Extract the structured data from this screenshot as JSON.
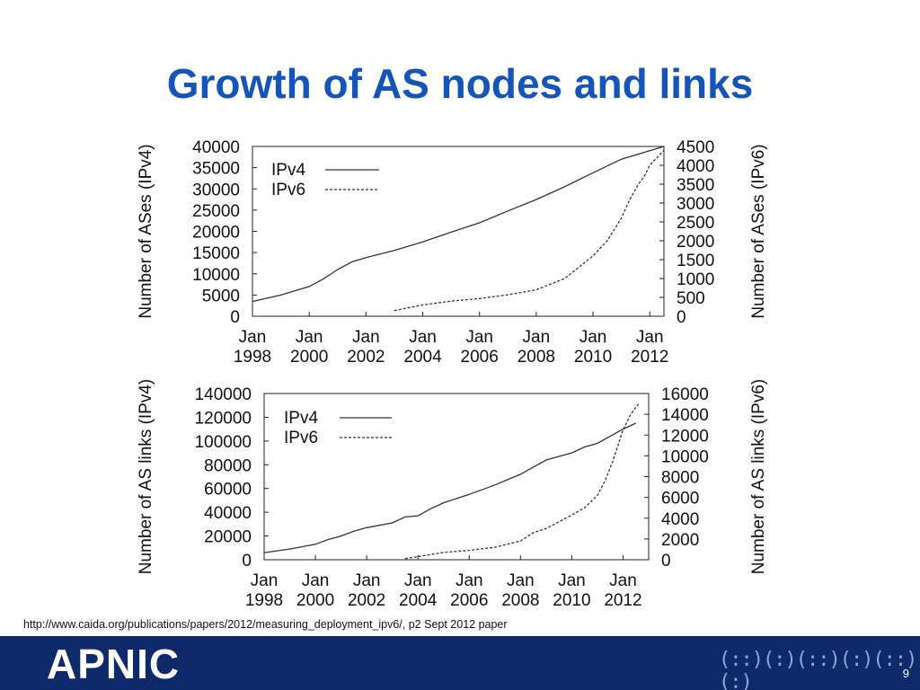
{
  "slide": {
    "title": "Growth of AS nodes and links",
    "source_note": "http://www.caida.org/publications/papers/2012/measuring_deployment_ipv6/, p2 Sept 2012 paper",
    "page_number": "9"
  },
  "footer": {
    "logo_text": "APNIC",
    "colors": {
      "bar": "#0f2a6b",
      "logo": "#ffffff",
      "title": "#1554b8"
    }
  },
  "chart_data": [
    {
      "type": "line",
      "title": "",
      "ylabel": "Number of ASes (IPv4)",
      "y2label": "Number of ASes (IPv6)",
      "x_ticks": [
        {
          "month": "Jan",
          "year": "1998",
          "t": 1998
        },
        {
          "month": "Jan",
          "year": "2000",
          "t": 2000
        },
        {
          "month": "Jan",
          "year": "2002",
          "t": 2002
        },
        {
          "month": "Jan",
          "year": "2004",
          "t": 2004
        },
        {
          "month": "Jan",
          "year": "2006",
          "t": 2006
        },
        {
          "month": "Jan",
          "year": "2008",
          "t": 2008
        },
        {
          "month": "Jan",
          "year": "2010",
          "t": 2010
        },
        {
          "month": "Jan",
          "year": "2012",
          "t": 2012
        }
      ],
      "xlim": [
        1998,
        2012.5
      ],
      "ylim": [
        0,
        40000
      ],
      "y2lim": [
        0,
        4500
      ],
      "y_ticks": [
        "0",
        "5000",
        "10000",
        "15000",
        "20000",
        "25000",
        "30000",
        "35000",
        "40000"
      ],
      "y2_ticks": [
        "0",
        "500",
        "1000",
        "1500",
        "2000",
        "2500",
        "3000",
        "3500",
        "4000",
        "4500"
      ],
      "legend": "top-left",
      "grid": false,
      "series": [
        {
          "name": "IPv4",
          "axis": "left",
          "style": "solid",
          "x": [
            1998,
            1999,
            2000,
            2000.5,
            2001,
            2001.5,
            2002,
            2003,
            2004,
            2005,
            2006,
            2007,
            2008,
            2009,
            2010,
            2011,
            2012.5
          ],
          "y": [
            3500,
            5000,
            7000,
            8800,
            11000,
            12800,
            13800,
            15500,
            17500,
            19800,
            22000,
            24800,
            27500,
            30500,
            33800,
            37000,
            40000
          ]
        },
        {
          "name": "IPv6",
          "axis": "right",
          "style": "dashed",
          "x": [
            2003,
            2004,
            2005,
            2006,
            2007,
            2008,
            2009,
            2010,
            2010.5,
            2011,
            2011.3,
            2011.6,
            2011.8,
            2012,
            2012.5
          ],
          "y": [
            150,
            300,
            400,
            470,
            570,
            700,
            1000,
            1600,
            2000,
            2600,
            3100,
            3500,
            3700,
            4000,
            4400
          ]
        }
      ]
    },
    {
      "type": "line",
      "title": "",
      "ylabel": "Number of AS links (IPv4)",
      "y2label": "Number of AS links (IPv6)",
      "x_ticks": [
        {
          "month": "Jan",
          "year": "1998",
          "t": 1998
        },
        {
          "month": "Jan",
          "year": "2000",
          "t": 2000
        },
        {
          "month": "Jan",
          "year": "2002",
          "t": 2002
        },
        {
          "month": "Jan",
          "year": "2004",
          "t": 2004
        },
        {
          "month": "Jan",
          "year": "2006",
          "t": 2006
        },
        {
          "month": "Jan",
          "year": "2008",
          "t": 2008
        },
        {
          "month": "Jan",
          "year": "2010",
          "t": 2010
        },
        {
          "month": "Jan",
          "year": "2012",
          "t": 2012
        }
      ],
      "xlim": [
        1998,
        2013
      ],
      "ylim": [
        0,
        140000
      ],
      "y2lim": [
        0,
        16000
      ],
      "y_ticks": [
        "0",
        "20000",
        "40000",
        "60000",
        "80000",
        "100000",
        "120000",
        "140000"
      ],
      "y2_ticks": [
        "0",
        "2000",
        "4000",
        "6000",
        "8000",
        "10000",
        "12000",
        "14000",
        "16000"
      ],
      "legend": "top-left",
      "grid": false,
      "series": [
        {
          "name": "IPv4",
          "axis": "left",
          "style": "solid",
          "x": [
            1998,
            1999,
            2000,
            2000.5,
            2001,
            2001.5,
            2002,
            2003,
            2003.5,
            2004,
            2004.5,
            2005,
            2006,
            2007,
            2008,
            2008.5,
            2009,
            2010,
            2010.5,
            2011,
            2012,
            2012.5
          ],
          "y": [
            6000,
            9000,
            13000,
            17000,
            20000,
            24000,
            27000,
            31000,
            36000,
            37000,
            43000,
            48000,
            55000,
            63000,
            72000,
            78000,
            84000,
            90000,
            95000,
            98000,
            110000,
            115000
          ]
        },
        {
          "name": "IPv6",
          "axis": "right",
          "style": "dashed",
          "x": [
            2003.5,
            2004,
            2005,
            2006,
            2007,
            2008,
            2008.5,
            2009,
            2010,
            2010.5,
            2011,
            2011.3,
            2011.6,
            2011.8,
            2012,
            2012.3,
            2012.6
          ],
          "y": [
            100,
            300,
            700,
            900,
            1200,
            1800,
            2600,
            3000,
            4300,
            5000,
            6200,
            7600,
            9500,
            11000,
            12500,
            14000,
            15000
          ]
        }
      ]
    }
  ]
}
